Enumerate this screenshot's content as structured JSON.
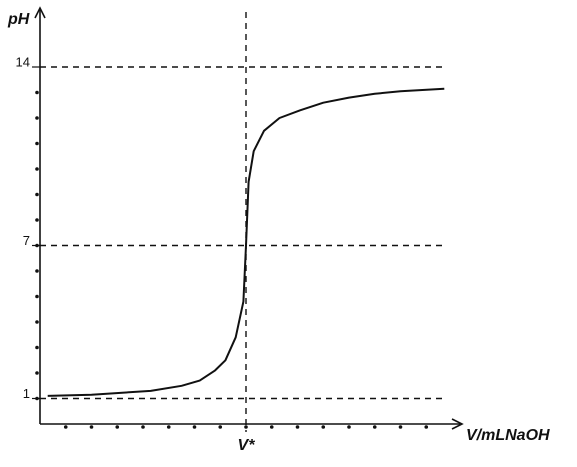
{
  "chart_data": {
    "type": "line",
    "y_label": "pH",
    "x_label": "V/mLNaOH",
    "xlim": [
      0,
      16
    ],
    "ylim": [
      0,
      16
    ],
    "xticks": [
      {
        "value": 8,
        "label": "V*"
      }
    ],
    "yticks": [
      1,
      7,
      14
    ],
    "x_minor_ticks": [
      1,
      2,
      3,
      4,
      5,
      6,
      7,
      8,
      9,
      10,
      11,
      12,
      13,
      14,
      15
    ],
    "y_minor_ticks": [
      1,
      2,
      3,
      4,
      5,
      6,
      7,
      8,
      9,
      10,
      11,
      12,
      13
    ],
    "grid": true,
    "series": [
      {
        "color": "#111111",
        "x": [
          0.3,
          2,
          4.3,
          5.5,
          6.2,
          6.8,
          7.2,
          7.6,
          7.9,
          8,
          8.1,
          8.3,
          8.7,
          9.3,
          10.1,
          11,
          12,
          13,
          14,
          15.7
        ],
        "values": [
          1.1,
          1.15,
          1.3,
          1.5,
          1.7,
          2.1,
          2.5,
          3.4,
          4.8,
          7,
          9.5,
          10.7,
          11.5,
          12.0,
          12.3,
          12.6,
          12.8,
          12.95,
          13.05,
          13.15
        ]
      }
    ]
  }
}
